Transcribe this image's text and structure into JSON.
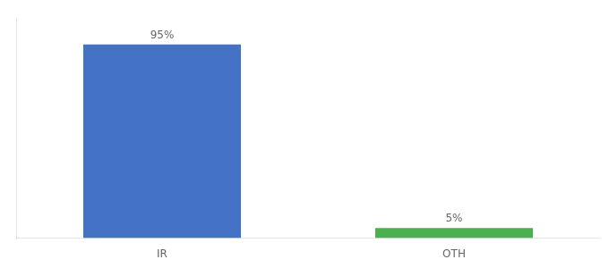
{
  "chart_data": {
    "type": "bar",
    "categories": [
      "IR",
      "OTH"
    ],
    "values": [
      95,
      5
    ],
    "value_labels": [
      "95%",
      "5%"
    ],
    "colors": [
      "#4472C4",
      "#4CAF50"
    ],
    "ylim": [
      0,
      108
    ],
    "data_labels": true,
    "tick_labels": "x",
    "grid": false
  }
}
